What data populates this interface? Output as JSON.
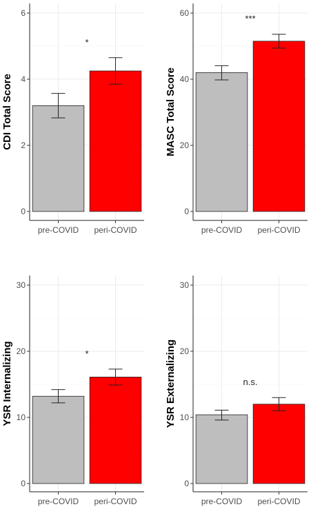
{
  "chart_data": [
    {
      "type": "bar",
      "categories": [
        "pre-COVID",
        "peri-COVID"
      ],
      "values": [
        3.2,
        4.25
      ],
      "errors": [
        [
          2.83,
          3.57
        ],
        [
          3.85,
          4.65
        ]
      ],
      "colors": [
        "#bebebe",
        "#ff0000"
      ],
      "ylabel": "CDI Total Score",
      "ylim": [
        0,
        6
      ],
      "yticks": [
        0,
        2,
        4,
        6
      ],
      "significance": "*",
      "grid": true
    },
    {
      "type": "bar",
      "categories": [
        "pre-COVID",
        "peri-COVID"
      ],
      "values": [
        42,
        51.5
      ],
      "errors": [
        [
          39.8,
          44.1
        ],
        [
          49.4,
          53.6
        ]
      ],
      "colors": [
        "#bebebe",
        "#ff0000"
      ],
      "ylabel": "MASC Total Score",
      "ylim": [
        0,
        60
      ],
      "yticks": [
        0,
        20,
        40,
        60
      ],
      "significance": "***",
      "grid": true
    },
    {
      "type": "bar",
      "categories": [
        "pre-COVID",
        "peri-COVID"
      ],
      "values": [
        13.2,
        16.1
      ],
      "errors": [
        [
          12.2,
          14.2
        ],
        [
          14.9,
          17.3
        ]
      ],
      "colors": [
        "#bebebe",
        "#ff0000"
      ],
      "ylabel": "YSR Internalizing",
      "ylim": [
        0,
        30
      ],
      "yticks": [
        0,
        10,
        20,
        30
      ],
      "significance": "*",
      "grid": true
    },
    {
      "type": "bar",
      "categories": [
        "pre-COVID",
        "peri-COVID"
      ],
      "values": [
        10.4,
        12.0
      ],
      "errors": [
        [
          9.6,
          11.1
        ],
        [
          11.0,
          13.0
        ]
      ],
      "colors": [
        "#bebebe",
        "#ff0000"
      ],
      "ylabel": "YSR Externalizing",
      "ylim": [
        0,
        30
      ],
      "yticks": [
        0,
        10,
        20,
        30
      ],
      "significance": "n.s.",
      "grid": true
    }
  ]
}
